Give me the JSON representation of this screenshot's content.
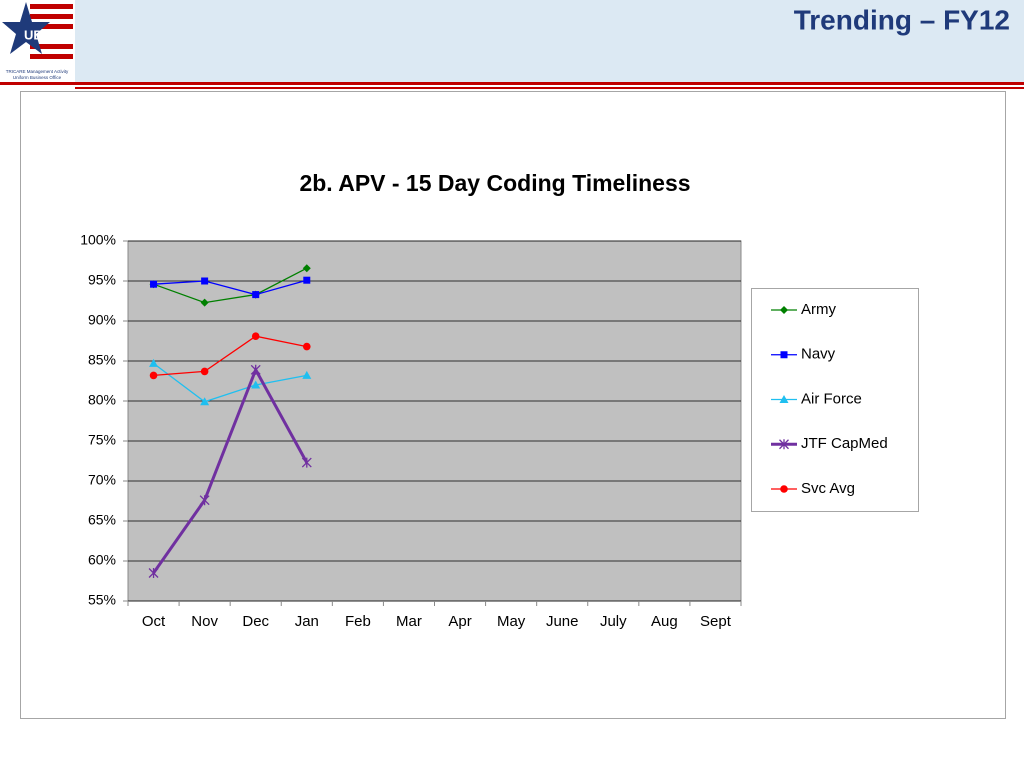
{
  "header": {
    "title": "Trending – FY12",
    "logo": "UBO",
    "logo_line1": "TRICARE Management Activity",
    "logo_line2": "Uniform Business Office"
  },
  "chart_data": {
    "type": "line",
    "title": "2b. APV - 15 Day Coding Timeliness",
    "categories": [
      "Oct",
      "Nov",
      "Dec",
      "Jan",
      "Feb",
      "Mar",
      "Apr",
      "May",
      "June",
      "July",
      "Aug",
      "Sept"
    ],
    "series": [
      {
        "name": "Army",
        "color": "#008000",
        "marker": "diamond",
        "values": [
          94.6,
          92.3,
          93.3,
          96.6,
          null,
          null,
          null,
          null,
          null,
          null,
          null,
          null
        ]
      },
      {
        "name": "Navy",
        "color": "#0000ff",
        "marker": "square",
        "values": [
          94.6,
          95.0,
          93.3,
          95.1,
          null,
          null,
          null,
          null,
          null,
          null,
          null,
          null
        ]
      },
      {
        "name": "Air Force",
        "color": "#1fbff0",
        "marker": "triangle",
        "values": [
          84.7,
          79.9,
          82.0,
          83.2,
          null,
          null,
          null,
          null,
          null,
          null,
          null,
          null
        ]
      },
      {
        "name": "JTF CapMed",
        "color": "#7030a0",
        "marker": "x",
        "values": [
          58.5,
          67.6,
          83.9,
          72.3,
          null,
          null,
          null,
          null,
          null,
          null,
          null,
          null
        ]
      },
      {
        "name": "Svc Avg",
        "color": "#ff0000",
        "marker": "circle",
        "values": [
          83.2,
          83.7,
          88.1,
          86.8,
          null,
          null,
          null,
          null,
          null,
          null,
          null,
          null
        ]
      }
    ],
    "ylim": [
      55,
      100
    ],
    "yticks": [
      {
        "value": 55,
        "label": "55%"
      },
      {
        "value": 60,
        "label": "60%"
      },
      {
        "value": 65,
        "label": "65%"
      },
      {
        "value": 70,
        "label": "70%"
      },
      {
        "value": 75,
        "label": "75%"
      },
      {
        "value": 80,
        "label": "80%"
      },
      {
        "value": 85,
        "label": "85%"
      },
      {
        "value": 90,
        "label": "90%"
      },
      {
        "value": 95,
        "label": "95%"
      },
      {
        "value": 100,
        "label": "100%"
      }
    ],
    "grid": true,
    "legend": "right",
    "plot_background": "#c0c0c0"
  }
}
